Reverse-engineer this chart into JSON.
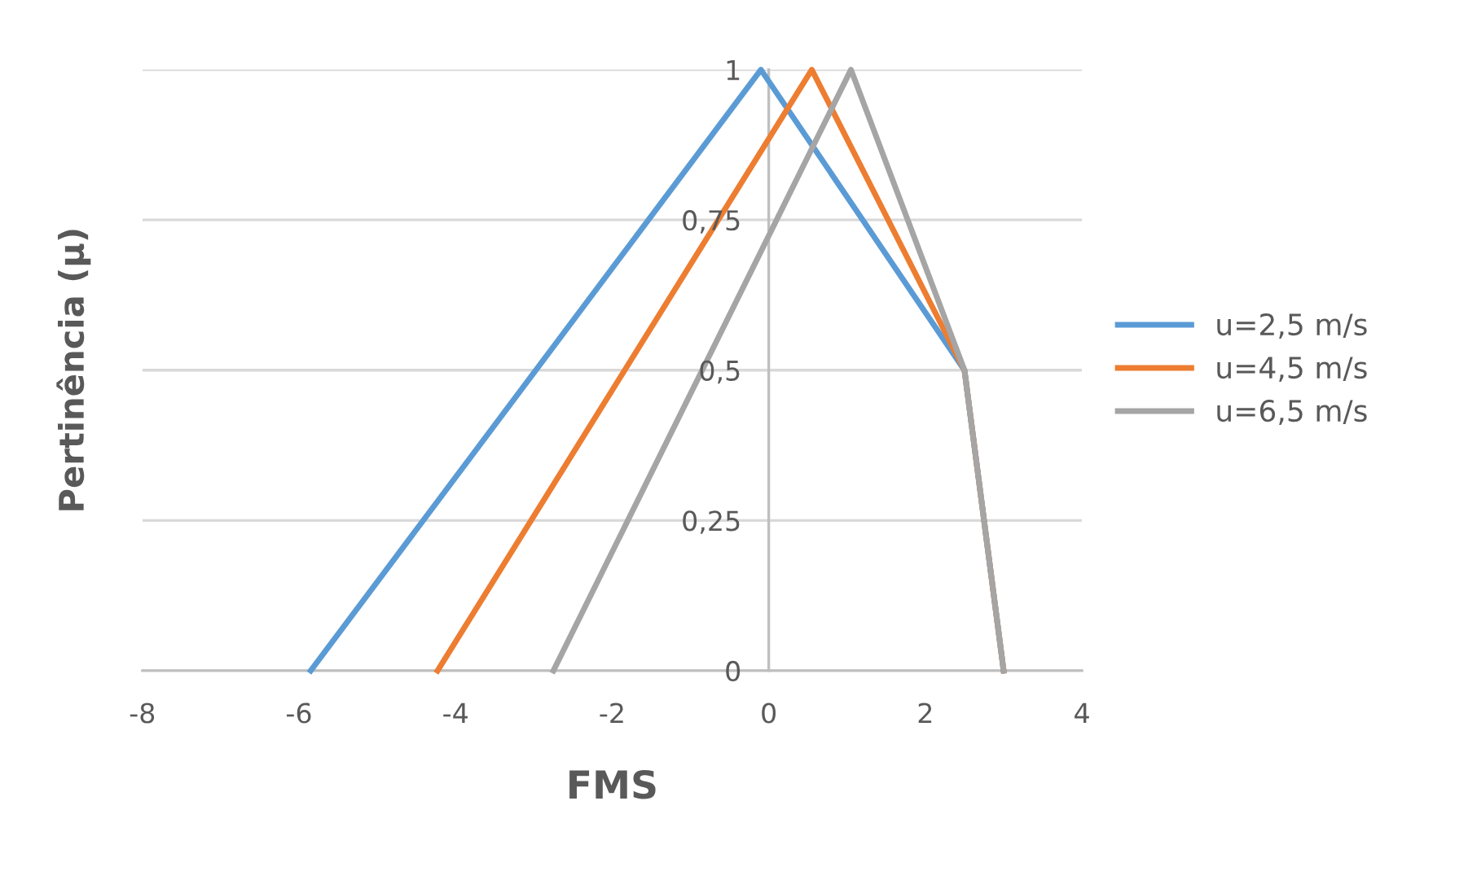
{
  "chart_data": {
    "type": "line",
    "xlabel": "FMS",
    "ylabel": "Pertinência (µ)",
    "xlim": [
      -8,
      4
    ],
    "xticks": [
      -8,
      -6,
      -4,
      -2,
      0,
      2,
      4
    ],
    "ylim": [
      0,
      1
    ],
    "yticks": [
      0,
      {
        "value": 0.25,
        "label": "0,25"
      },
      {
        "value": 0.5,
        "label": "0,5"
      },
      {
        "value": 0.75,
        "label": "0,75"
      },
      1
    ],
    "grid": "y",
    "legend": "right",
    "marker": "none",
    "line_style": "solid",
    "series": [
      {
        "name": "u=2,5 m/s",
        "color": "#5b9bd5",
        "x": [
          -5.85,
          -0.1,
          2.5,
          3
        ],
        "values": [
          0,
          1,
          0.5,
          0
        ]
      },
      {
        "name": "u=4,5 m/s",
        "color": "#ed7d31",
        "x": [
          -4.23,
          0.55,
          2.5,
          3
        ],
        "values": [
          0,
          1,
          0.5,
          0
        ]
      },
      {
        "name": "u=6,5 m/s",
        "color": "#a5a5a5",
        "x": [
          -2.75,
          1.05,
          2.5,
          3
        ],
        "values": [
          0,
          1,
          0.5,
          0
        ]
      }
    ]
  }
}
